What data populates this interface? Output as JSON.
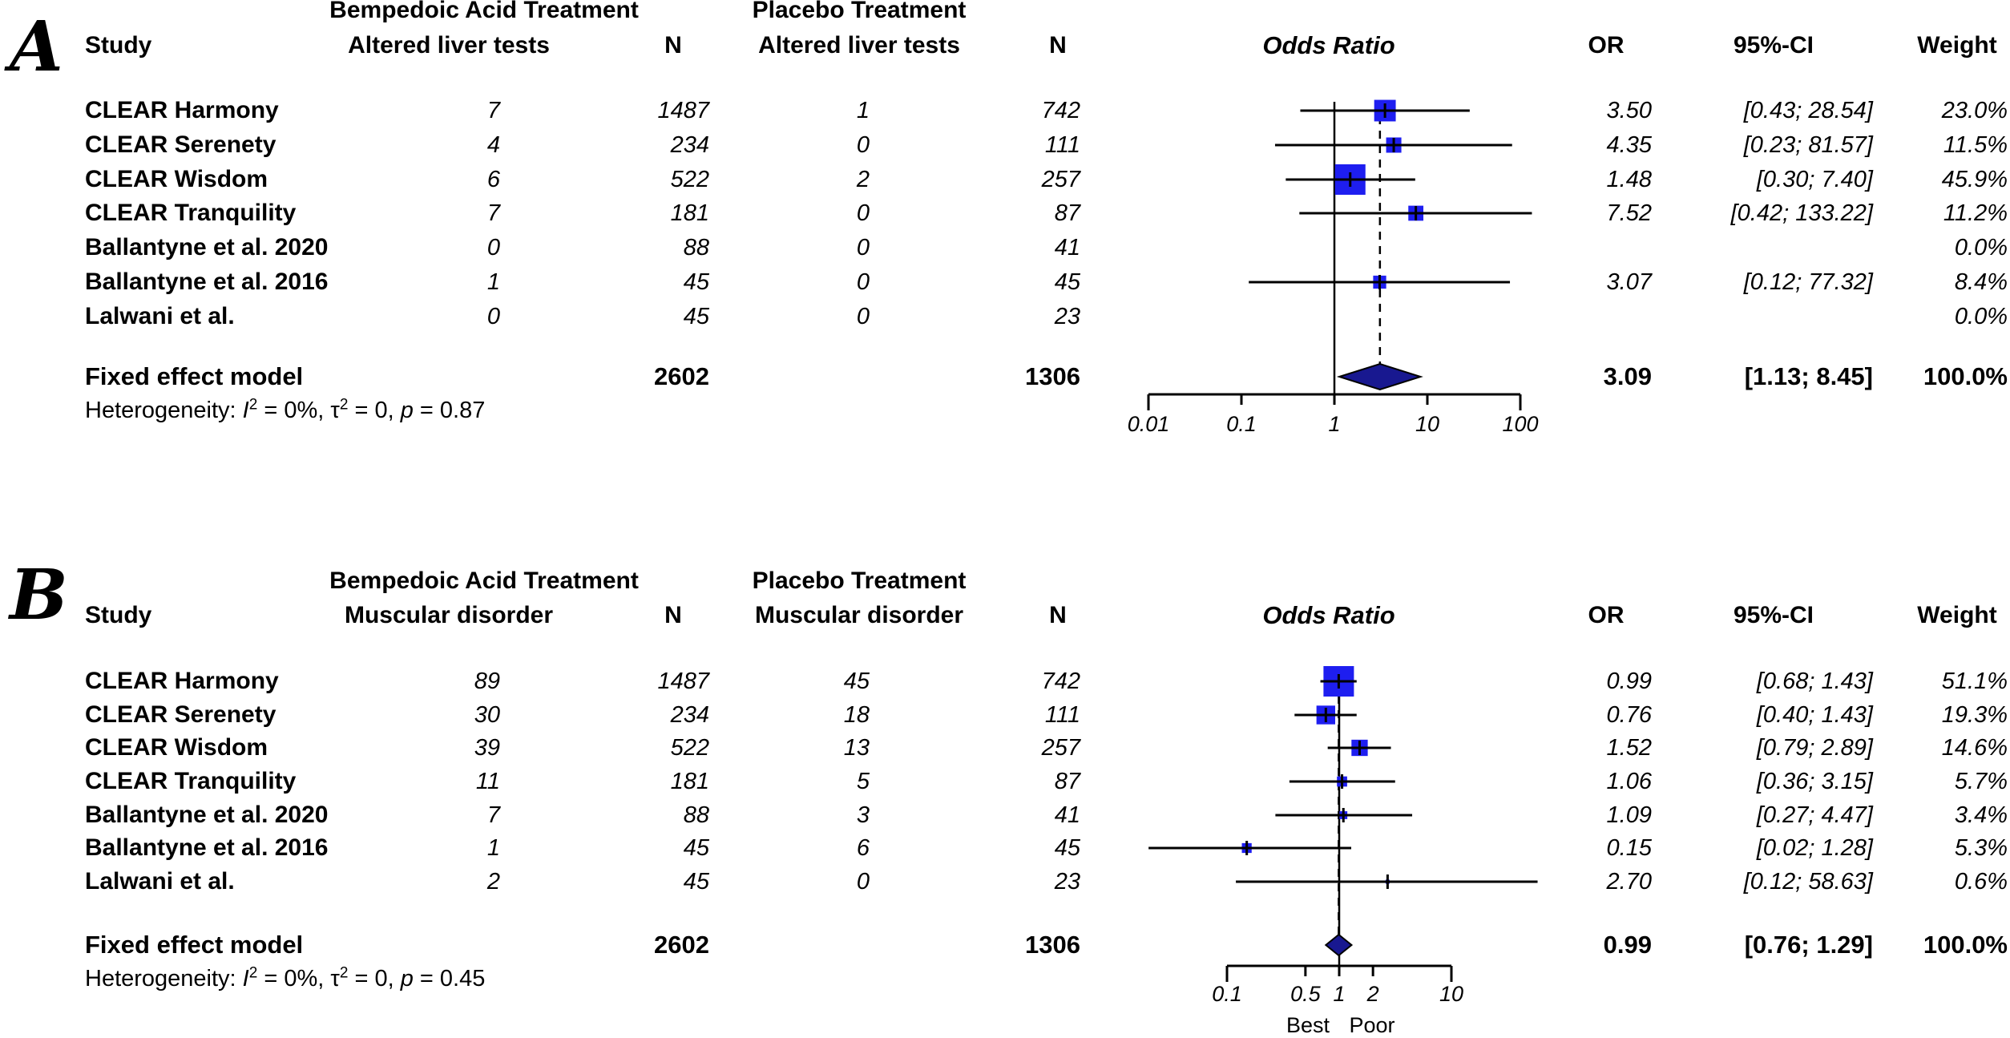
{
  "figure": {
    "panels": [
      {
        "letter": "A",
        "group1": "Bempedoic Acid Treatment",
        "group2": "Placebo Treatment",
        "col_study": "Study",
        "col_events1": "Altered liver tests",
        "col_n1": "N",
        "col_events2": "Altered liver tests",
        "col_n2": "N",
        "plot_title": "Odds Ratio",
        "col_or": "OR",
        "col_ci": "95%-CI",
        "col_weight": "Weight",
        "het": {
          "prefix": "Heterogeneity: ",
          "i_sym": "I",
          "sup1": "2",
          "mid1": " = 0%, ",
          "tau_sym": "τ",
          "sup2": "2",
          "mid2": " = 0, ",
          "p_sym": "p",
          "tail": " = 0.87"
        },
        "annotations": []
      },
      {
        "letter": "B",
        "group1": "Bempedoic Acid Treatment",
        "group2": "Placebo Treatment",
        "col_study": "Study",
        "col_events1": "Muscular disorder",
        "col_n1": "N",
        "col_events2": "Muscular disorder",
        "col_n2": "N",
        "plot_title": "Odds Ratio",
        "col_or": "OR",
        "col_ci": "95%-CI",
        "col_weight": "Weight",
        "het": {
          "prefix": "Heterogeneity: ",
          "i_sym": "I",
          "sup1": "2",
          "mid1": " = 0%, ",
          "tau_sym": "τ",
          "sup2": "2",
          "mid2": " = 0, ",
          "p_sym": "p",
          "tail": " = 0.45"
        },
        "annotations": [
          "Best",
          "Poor"
        ]
      }
    ],
    "colors": {
      "square": "#1e1ef0",
      "diamond": "#181890",
      "line": "#000000"
    }
  },
  "chart_data": [
    {
      "type": "scatter",
      "subtype": "forest-plot",
      "panel": "A",
      "title": "Odds Ratio",
      "outcome": "Altered liver tests",
      "effect_measure": "OR",
      "x_scale": "log",
      "x_ticks": [
        0.01,
        0.1,
        1,
        10,
        100
      ],
      "x_tick_labels": [
        "0.01",
        "0.1",
        "1",
        "10",
        "100"
      ],
      "reference_line": 1,
      "studies": [
        {
          "study": "CLEAR Harmony",
          "treatment_events": "7",
          "treatment_n": "1487",
          "placebo_events": "1",
          "placebo_n": "742",
          "or": 3.5,
          "ci_low": 0.43,
          "ci_high": 28.54,
          "weight_pct": 23.0,
          "or_text": "3.50",
          "ci_text": "[0.43; 28.54]",
          "weight_text": "23.0%"
        },
        {
          "study": "CLEAR Serenety",
          "treatment_events": "4",
          "treatment_n": "234",
          "placebo_events": "0",
          "placebo_n": "111",
          "or": 4.35,
          "ci_low": 0.23,
          "ci_high": 81.57,
          "weight_pct": 11.5,
          "or_text": "4.35",
          "ci_text": "[0.23; 81.57]",
          "weight_text": "11.5%"
        },
        {
          "study": "CLEAR Wisdom",
          "treatment_events": "6",
          "treatment_n": "522",
          "placebo_events": "2",
          "placebo_n": "257",
          "or": 1.48,
          "ci_low": 0.3,
          "ci_high": 7.4,
          "weight_pct": 45.9,
          "or_text": "1.48",
          "ci_text": "[0.30; 7.40]",
          "weight_text": "45.9%"
        },
        {
          "study": "CLEAR Tranquility",
          "treatment_events": "7",
          "treatment_n": "181",
          "placebo_events": "0",
          "placebo_n": "87",
          "or": 7.52,
          "ci_low": 0.42,
          "ci_high": 133.22,
          "weight_pct": 11.2,
          "or_text": "7.52",
          "ci_text": "[0.42; 133.22]",
          "weight_text": "11.2%"
        },
        {
          "study": "Ballantyne et al. 2020",
          "treatment_events": "0",
          "treatment_n": "88",
          "placebo_events": "0",
          "placebo_n": "41",
          "or": null,
          "ci_low": null,
          "ci_high": null,
          "weight_pct": 0.0,
          "or_text": "",
          "ci_text": "",
          "weight_text": "0.0%"
        },
        {
          "study": "Ballantyne et al. 2016",
          "treatment_events": "1",
          "treatment_n": "45",
          "placebo_events": "0",
          "placebo_n": "45",
          "or": 3.07,
          "ci_low": 0.12,
          "ci_high": 77.32,
          "weight_pct": 8.4,
          "or_text": "3.07",
          "ci_text": "[0.12; 77.32]",
          "weight_text": "8.4%"
        },
        {
          "study": "Lalwani et al.",
          "treatment_events": "0",
          "treatment_n": "45",
          "placebo_events": "0",
          "placebo_n": "23",
          "or": null,
          "ci_low": null,
          "ci_high": null,
          "weight_pct": 0.0,
          "or_text": "",
          "ci_text": "",
          "weight_text": "0.0%"
        }
      ],
      "pooled": {
        "label": "Fixed effect model",
        "treatment_n": "2602",
        "placebo_n": "1306",
        "or": 3.09,
        "ci_low": 1.13,
        "ci_high": 8.45,
        "or_text": "3.09",
        "ci_text": "[1.13; 8.45]",
        "weight_text": "100.0%"
      },
      "heterogeneity": {
        "I2": "0%",
        "tau2": "0",
        "p": "0.87"
      }
    },
    {
      "type": "scatter",
      "subtype": "forest-plot",
      "panel": "B",
      "title": "Odds Ratio",
      "outcome": "Muscular disorder",
      "effect_measure": "OR",
      "x_scale": "log",
      "x_ticks": [
        0.1,
        0.5,
        1,
        2,
        10
      ],
      "x_tick_labels": [
        "0.1",
        "0.5",
        "1",
        "2",
        "10"
      ],
      "reference_line": 1,
      "axis_annotations": [
        "Best",
        "Poor"
      ],
      "studies": [
        {
          "study": "CLEAR Harmony",
          "treatment_events": "89",
          "treatment_n": "1487",
          "placebo_events": "45",
          "placebo_n": "742",
          "or": 0.99,
          "ci_low": 0.68,
          "ci_high": 1.43,
          "weight_pct": 51.1,
          "or_text": "0.99",
          "ci_text": "[0.68; 1.43]",
          "weight_text": "51.1%"
        },
        {
          "study": "CLEAR Serenety",
          "treatment_events": "30",
          "treatment_n": "234",
          "placebo_events": "18",
          "placebo_n": "111",
          "or": 0.76,
          "ci_low": 0.4,
          "ci_high": 1.43,
          "weight_pct": 19.3,
          "or_text": "0.76",
          "ci_text": "[0.40; 1.43]",
          "weight_text": "19.3%"
        },
        {
          "study": "CLEAR Wisdom",
          "treatment_events": "39",
          "treatment_n": "522",
          "placebo_events": "13",
          "placebo_n": "257",
          "or": 1.52,
          "ci_low": 0.79,
          "ci_high": 2.89,
          "weight_pct": 14.6,
          "or_text": "1.52",
          "ci_text": "[0.79; 2.89]",
          "weight_text": "14.6%"
        },
        {
          "study": "CLEAR Tranquility",
          "treatment_events": "11",
          "treatment_n": "181",
          "placebo_events": "5",
          "placebo_n": "87",
          "or": 1.06,
          "ci_low": 0.36,
          "ci_high": 3.15,
          "weight_pct": 5.7,
          "or_text": "1.06",
          "ci_text": "[0.36; 3.15]",
          "weight_text": "5.7%"
        },
        {
          "study": "Ballantyne et al. 2020",
          "treatment_events": "7",
          "treatment_n": "88",
          "placebo_events": "3",
          "placebo_n": "41",
          "or": 1.09,
          "ci_low": 0.27,
          "ci_high": 4.47,
          "weight_pct": 3.4,
          "or_text": "1.09",
          "ci_text": "[0.27; 4.47]",
          "weight_text": "3.4%"
        },
        {
          "study": "Ballantyne et al. 2016",
          "treatment_events": "1",
          "treatment_n": "45",
          "placebo_events": "6",
          "placebo_n": "45",
          "or": 0.15,
          "ci_low": 0.02,
          "ci_high": 1.28,
          "weight_pct": 5.3,
          "or_text": "0.15",
          "ci_text": "[0.02; 1.28]",
          "weight_text": "5.3%"
        },
        {
          "study": "Lalwani et al.",
          "treatment_events": "2",
          "treatment_n": "45",
          "placebo_events": "0",
          "placebo_n": "23",
          "or": 2.7,
          "ci_low": 0.12,
          "ci_high": 58.63,
          "weight_pct": 0.6,
          "or_text": "2.70",
          "ci_text": "[0.12; 58.63]",
          "weight_text": "0.6%"
        }
      ],
      "pooled": {
        "label": "Fixed effect model",
        "treatment_n": "2602",
        "placebo_n": "1306",
        "or": 0.99,
        "ci_low": 0.76,
        "ci_high": 1.29,
        "or_text": "0.99",
        "ci_text": "[0.76; 1.29]",
        "weight_text": "100.0%"
      },
      "heterogeneity": {
        "I2": "0%",
        "tau2": "0",
        "p": "0.45"
      }
    }
  ]
}
